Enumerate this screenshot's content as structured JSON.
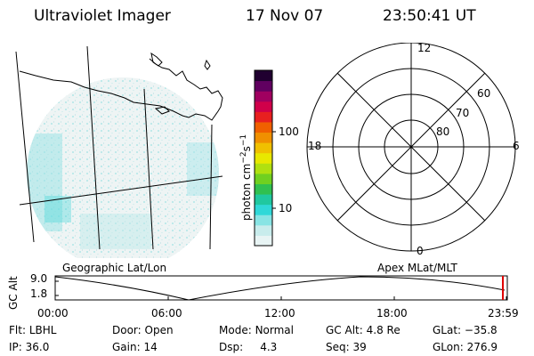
{
  "header": {
    "instrument": "Ultraviolet Imager",
    "date": "17 Nov 07",
    "time": "23:50:41 UT"
  },
  "colorbar": {
    "unit_label": "photon cm",
    "unit_exp1": "−2",
    "unit_s": "s",
    "unit_exp2": "−1",
    "tick_100": "100",
    "tick_10": "10",
    "colors": [
      "#e8f4f4",
      "#c8ecec",
      "#88e4e4",
      "#30d8d8",
      "#20c8a0",
      "#30c050",
      "#70d020",
      "#b0e010",
      "#e8e800",
      "#f0c000",
      "#f09000",
      "#f06000",
      "#e82020",
      "#d0004a",
      "#a00060",
      "#600060",
      "#200030"
    ]
  },
  "geo_label": "Geographic Lat/Lon",
  "apex_label": "Apex MLat/MLT",
  "polar": {
    "mlt_12": "12",
    "mlt_18": "18",
    "mlt_6": "6",
    "mlt_0": "0",
    "lat_60": "60",
    "lat_70": "70",
    "lat_80": "80"
  },
  "timeline": {
    "y_label": "GC Alt",
    "y_max": "9.0",
    "y_min": "1.8",
    "ticks": [
      "00:00",
      "06:00",
      "12:00",
      "18:00",
      "23:59"
    ],
    "marker_color": "#e00000"
  },
  "info": {
    "flt_label": "Flt:",
    "flt": "LBHL",
    "ip_label": "IP:",
    "ip": "36.0",
    "door_label": "Door:",
    "door": "Open",
    "gain_label": "Gain:",
    "gain": "14",
    "mode_label": "Mode:",
    "mode": "Normal",
    "dsp_label": "Dsp:",
    "dsp": "4.3",
    "gcalt_label": "GC Alt:",
    "gcalt": "4.8 Re",
    "seq_label": "Seq:",
    "seq": "39",
    "glat_label": "GLat:",
    "glat": "−35.8",
    "glon_label": "GLon:",
    "glon": "276.9"
  }
}
